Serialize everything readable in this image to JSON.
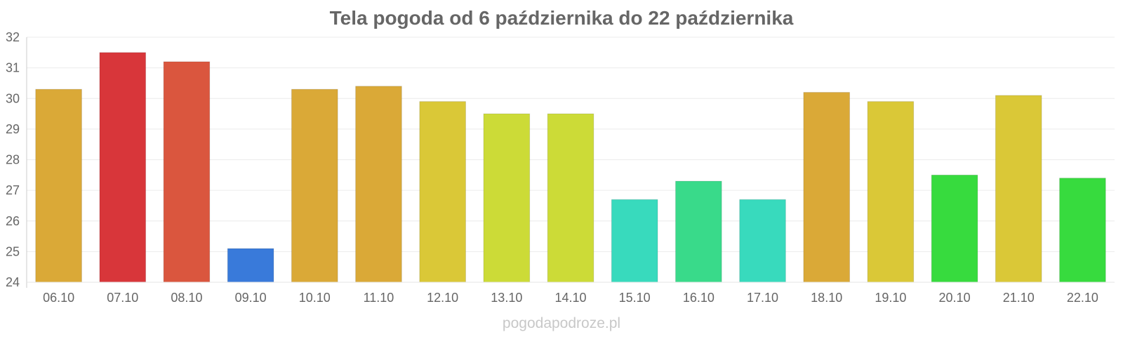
{
  "chart_data": {
    "type": "bar",
    "title": "Tela pogoda od 6 października do 22 października",
    "xlabel": "",
    "ylabel": "",
    "ylim": [
      24,
      32
    ],
    "yticks": [
      24,
      25,
      26,
      27,
      28,
      29,
      30,
      31,
      32
    ],
    "grid": true,
    "categories": [
      "06.10",
      "07.10",
      "08.10",
      "09.10",
      "10.10",
      "11.10",
      "12.10",
      "13.10",
      "14.10",
      "15.10",
      "16.10",
      "17.10",
      "18.10",
      "19.10",
      "20.10",
      "21.10",
      "22.10"
    ],
    "values": [
      30.3,
      31.5,
      31.2,
      25.1,
      30.3,
      30.4,
      29.9,
      29.5,
      29.5,
      26.7,
      27.3,
      26.7,
      30.2,
      29.9,
      27.5,
      30.1,
      27.4
    ],
    "colors": [
      "#d9a733",
      "#d73236",
      "#d9533a",
      "#3577d9",
      "#d9a733",
      "#d9a733",
      "#d9c733",
      "#cbda33",
      "#cbda33",
      "#34d9bc",
      "#35d988",
      "#34d9bc",
      "#d9a733",
      "#d9c733",
      "#33da3a",
      "#d9c733",
      "#33da3a"
    ]
  },
  "watermark": "pogodapodroze.pl"
}
